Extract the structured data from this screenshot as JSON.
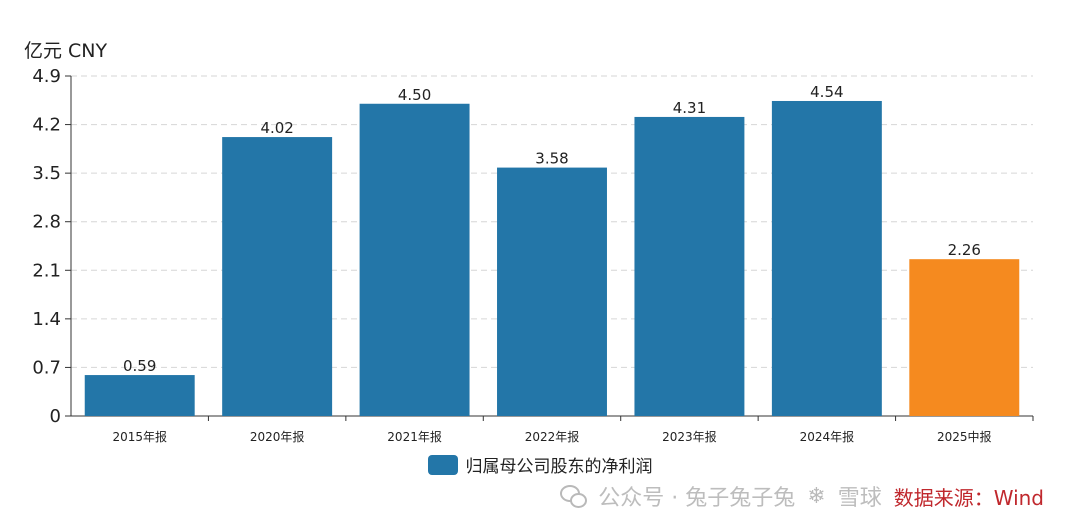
{
  "chart_data": {
    "type": "bar",
    "unit_label": "亿元  CNY",
    "categories": [
      "2015年报",
      "2020年报",
      "2021年报",
      "2022年报",
      "2023年报",
      "2024年报",
      "2025中报"
    ],
    "values": [
      0.59,
      4.02,
      4.5,
      3.58,
      4.31,
      4.54,
      2.26
    ],
    "value_labels": [
      "0.59",
      "4.02",
      "4.50",
      "3.58",
      "4.31",
      "4.54",
      "2.26"
    ],
    "bar_colors": [
      "#2376a8",
      "#2376a8",
      "#2376a8",
      "#2376a8",
      "#2376a8",
      "#2376a8",
      "#f58a1f"
    ],
    "yticks": [
      "0",
      "0.7",
      "1.4",
      "2.1",
      "2.8",
      "3.5",
      "4.2",
      "4.9"
    ],
    "ylim": [
      0,
      4.9
    ],
    "grid": true,
    "legend": {
      "label": "归属母公司股东的净利润",
      "color": "#2376a8",
      "placement": "bottom-center"
    }
  },
  "footer": {
    "watermark": "公众号 · 兔子兔子兔",
    "snowball_text": "雪球",
    "source": "数据来源：Wind"
  },
  "icons": {
    "wechat": "wechat-icon",
    "snowball": "snowball-icon"
  }
}
